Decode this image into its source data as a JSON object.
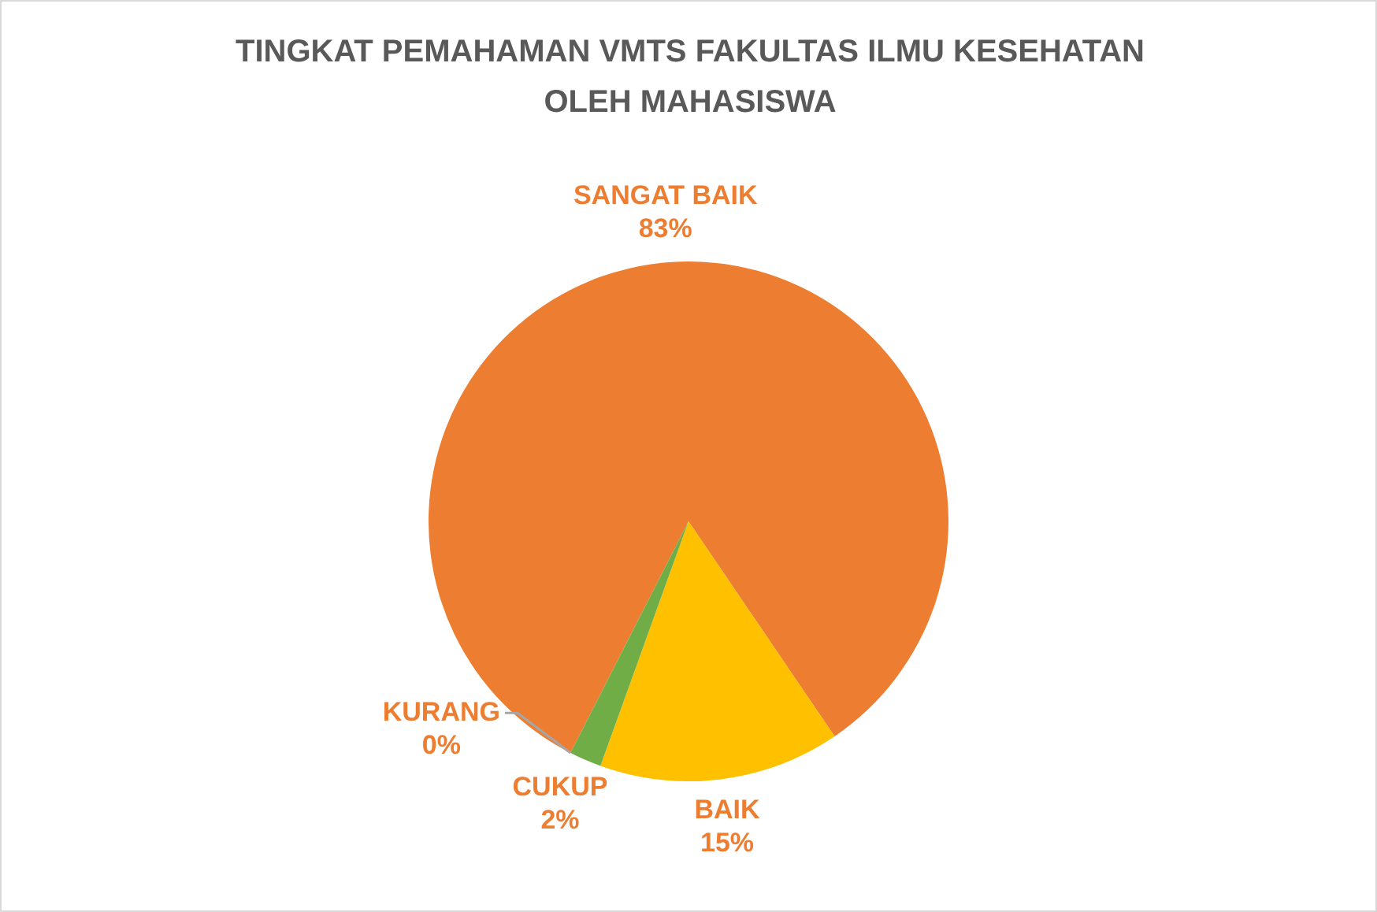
{
  "chart_data": {
    "type": "pie",
    "title": "TINGKAT PEMAHAMAN VMTS FAKULTAS ILMU KESEHATAN OLEH MAHASISWA",
    "categories": [
      "SANGAT BAIK",
      "BAIK",
      "CUKUP",
      "KURANG"
    ],
    "values": [
      83,
      15,
      2,
      0
    ],
    "colors": [
      "#ed7d31",
      "#ffc000",
      "#70ad47",
      "#5b9bd5"
    ],
    "value_labels": [
      "83%",
      "15%",
      "2%",
      "0%"
    ],
    "legend": false
  }
}
